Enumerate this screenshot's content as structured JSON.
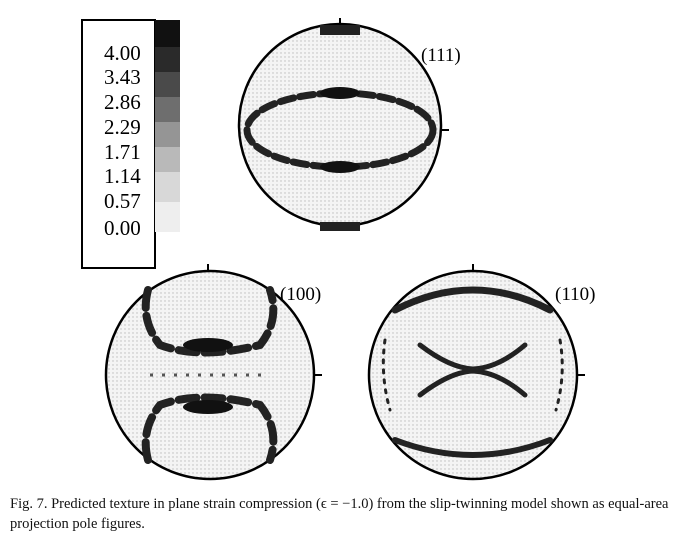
{
  "legend": {
    "levels": [
      "4.00",
      "3.43",
      "2.86",
      "2.29",
      "1.71",
      "1.14",
      "0.57",
      "0.00"
    ]
  },
  "pole_figures": [
    {
      "label": "(111)"
    },
    {
      "label": "(100)"
    },
    {
      "label": "(110)"
    }
  ],
  "caption": "Fig. 7. Predicted texture in plane strain compression (ϵ = −1.0) from the slip-twinning model shown as equal-area projection pole figures."
}
